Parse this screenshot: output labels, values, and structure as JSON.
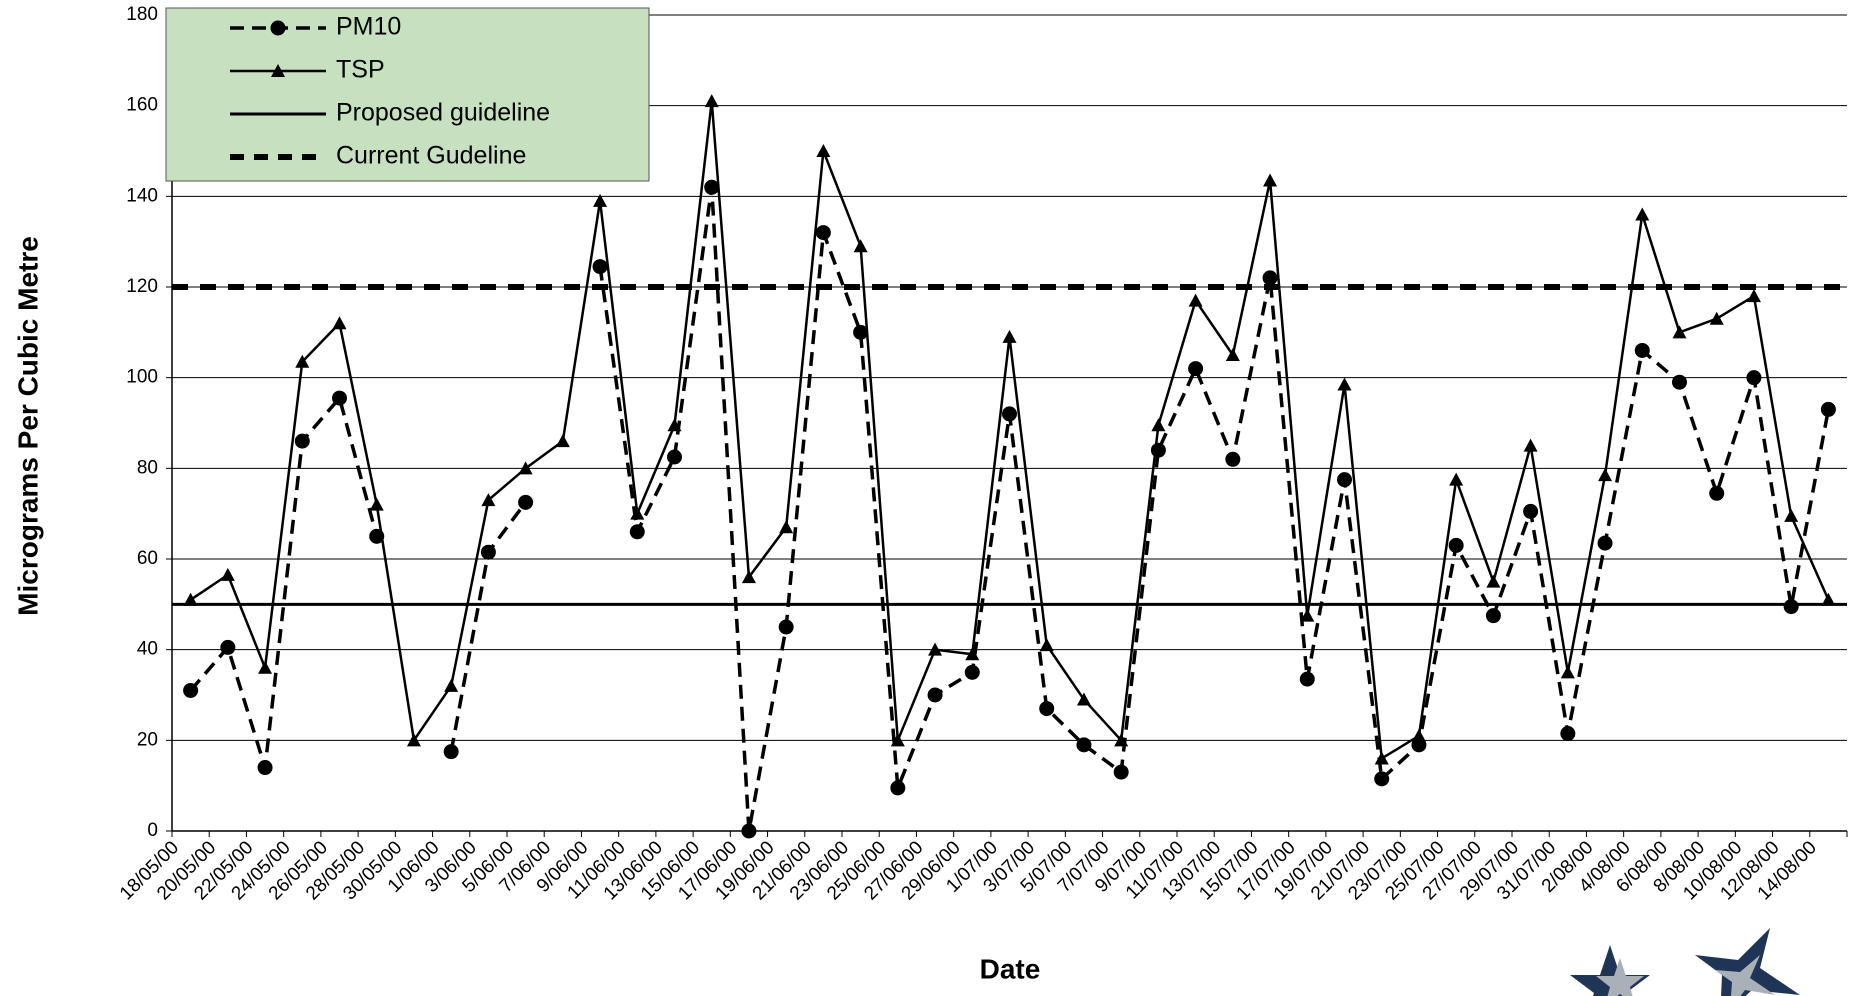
{
  "chart_data": {
    "type": "line",
    "y_label": "Micrograms Per Cubic Metre",
    "x_label": "Date",
    "categories": [
      "18/05/00",
      "20/05/00",
      "22/05/00",
      "24/05/00",
      "26/05/00",
      "28/05/00",
      "30/05/00",
      "1/06/00",
      "3/06/00",
      "5/06/00",
      "7/06/00",
      "9/06/00",
      "11/06/00",
      "13/06/00",
      "15/06/00",
      "17/06/00",
      "19/06/00",
      "21/06/00",
      "23/06/00",
      "25/06/00",
      "27/06/00",
      "29/06/00",
      "1/07/00",
      "3/07/00",
      "5/07/00",
      "7/07/00",
      "9/07/00",
      "11/07/00",
      "13/07/00",
      "15/07/00",
      "17/07/00",
      "19/07/00",
      "21/07/00",
      "23/07/00",
      "25/07/00",
      "27/07/00",
      "29/07/00",
      "31/07/00",
      "2/08/00",
      "4/08/00",
      "6/08/00",
      "8/08/00",
      "10/08/00",
      "12/08/00",
      "14/08/00"
    ],
    "series": [
      {
        "name": "PM10",
        "color": "#000000",
        "style": "dashed",
        "marker": "circle",
        "values": [
          31,
          40.5,
          14,
          86,
          95.5,
          65,
          null,
          17.5,
          61.5,
          72.5,
          null,
          124.5,
          66,
          82.5,
          142,
          0,
          45,
          132,
          110,
          9.5,
          30,
          35,
          92,
          27,
          19,
          13,
          84,
          102,
          82,
          122,
          33.5,
          77.5,
          11.5,
          19,
          63,
          47.5,
          70.5,
          21.5,
          63.5,
          106,
          99,
          74.5,
          100,
          49.5,
          93
        ]
      },
      {
        "name": "TSP",
        "color": "#000000",
        "style": "solid",
        "marker": "triangle",
        "values": [
          51,
          56.5,
          36,
          103.5,
          112,
          72,
          20,
          32,
          73,
          80,
          86,
          139,
          70,
          89.5,
          161,
          56,
          67,
          150,
          129,
          20,
          40,
          39,
          109,
          41,
          29,
          20,
          89.5,
          117,
          105,
          143.5,
          47.5,
          98.5,
          16,
          21,
          77.5,
          55,
          85,
          35,
          78.5,
          136,
          110,
          113,
          118,
          69.5,
          51
        ]
      }
    ],
    "guidelines": [
      {
        "name": "Proposed guideline",
        "value": 50,
        "style": "solid",
        "color": "#000000"
      },
      {
        "name": "Current Gudeline",
        "value": 120,
        "style": "dashed",
        "color": "#000000"
      }
    ],
    "ylim": [
      0,
      180
    ],
    "yticks": [
      0,
      20,
      40,
      60,
      80,
      100,
      120,
      140,
      160,
      180
    ],
    "grid": true,
    "legend": "top-left",
    "legend_color": "#c6e0c0"
  }
}
